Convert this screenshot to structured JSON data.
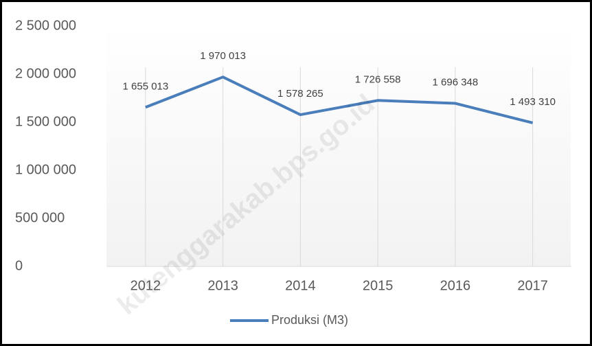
{
  "chart_data": {
    "type": "line",
    "categories": [
      "2012",
      "2013",
      "2014",
      "2015",
      "2016",
      "2017"
    ],
    "series": [
      {
        "name": "Produksi (M3)",
        "color": "#4a7ebb",
        "values": [
          1655013,
          1970013,
          1578265,
          1726558,
          1696348,
          1493310
        ],
        "value_labels": [
          "1 655 013",
          "1 970 013",
          "1 578 265",
          "1 726 558",
          "1 696 348",
          "1 493 310"
        ]
      }
    ],
    "ylim": [
      0,
      2500000
    ],
    "yticks": [
      {
        "value": 0,
        "label": "0"
      },
      {
        "value": 500000,
        "label": "500 000"
      },
      {
        "value": 1000000,
        "label": "1 000 000"
      },
      {
        "value": 1500000,
        "label": "1 500 000"
      },
      {
        "value": 2000000,
        "label": "2 000 000"
      },
      {
        "value": 2500000,
        "label": "2 500 000"
      }
    ],
    "grid": true,
    "legend": "bottom",
    "watermark": "kutenggarakab.bps.go.id"
  }
}
